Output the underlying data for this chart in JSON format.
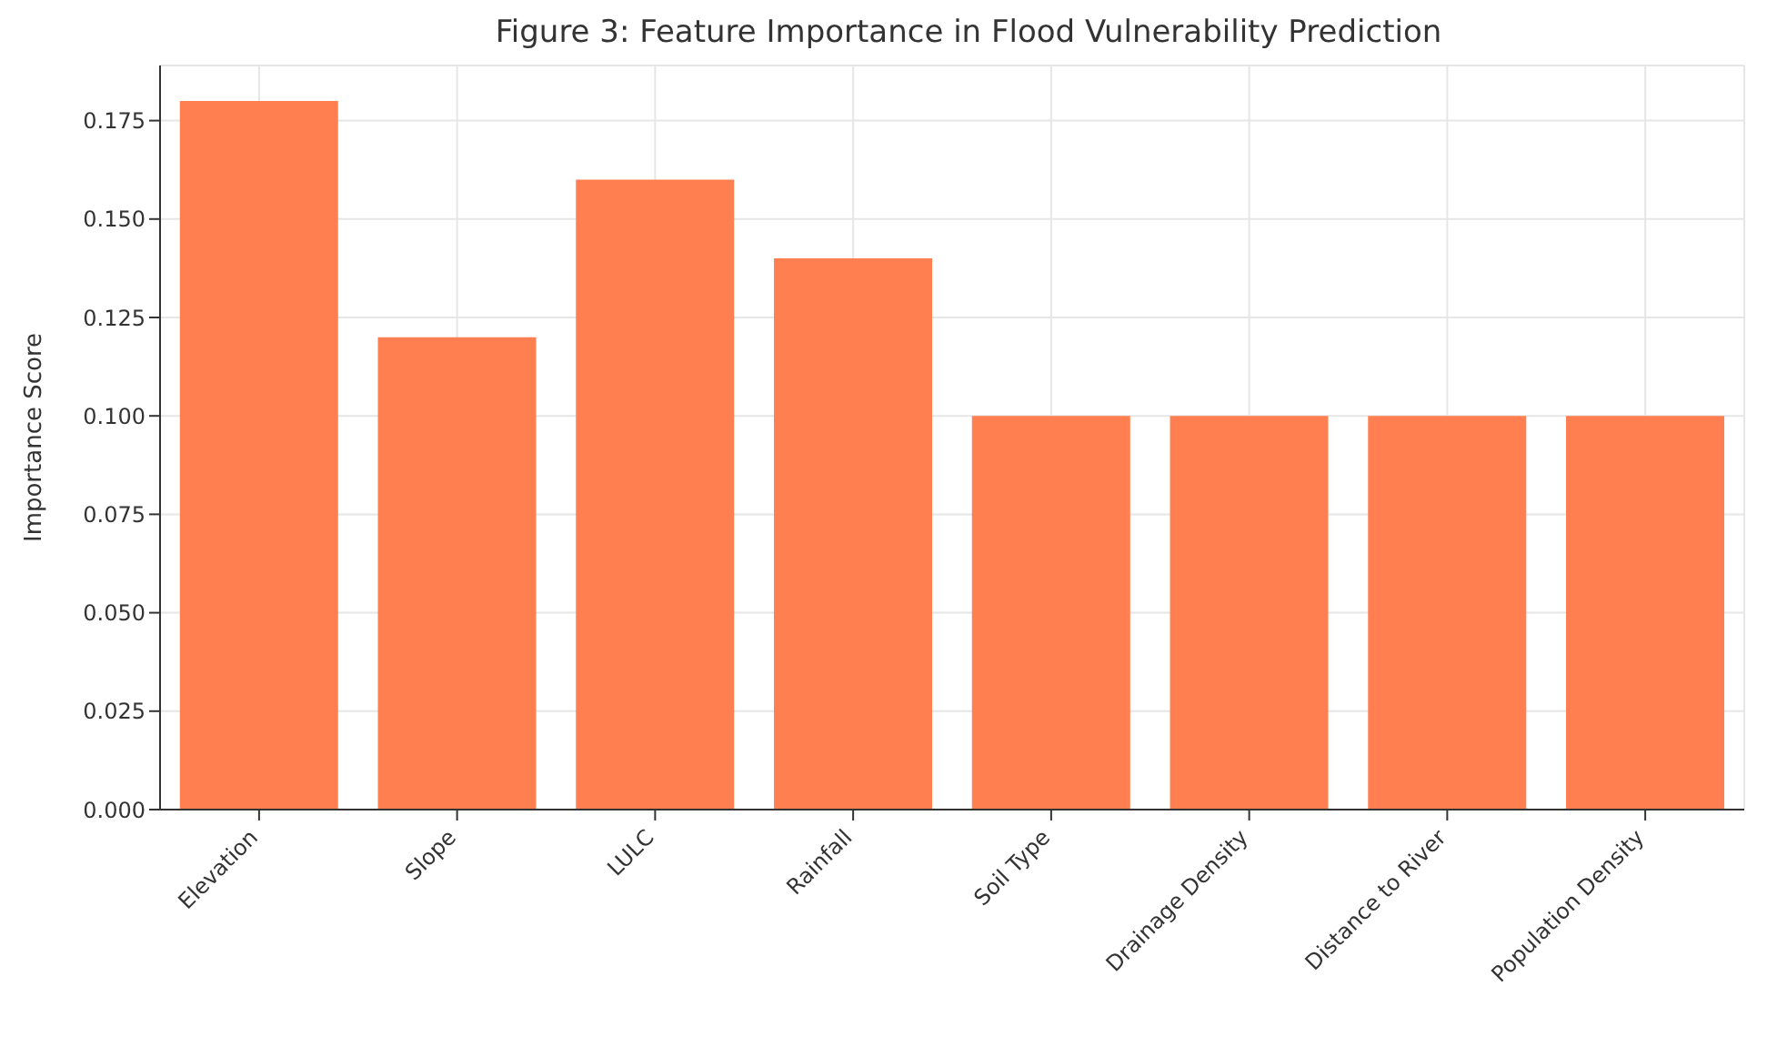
{
  "chart_data": {
    "type": "bar",
    "title": "Figure 3: Feature Importance in Flood Vulnerability Prediction",
    "ylabel": "Importance Score",
    "categories": [
      "Elevation",
      "Slope",
      "LULC",
      "Rainfall",
      "Soil Type",
      "Drainage Density",
      "Distance to River",
      "Population Density"
    ],
    "values": [
      0.18,
      0.12,
      0.16,
      0.14,
      0.1,
      0.1,
      0.1,
      0.1
    ],
    "color": "#ff7f50",
    "ylim": [
      0,
      0.189
    ],
    "yticks": [
      {
        "value": 0,
        "label": "0.000"
      },
      {
        "value": 0.025,
        "label": "0.025"
      },
      {
        "value": 0.05,
        "label": "0.050"
      },
      {
        "value": 0.075,
        "label": "0.075"
      },
      {
        "value": 0.1,
        "label": "0.100"
      },
      {
        "value": 0.125,
        "label": "0.125"
      },
      {
        "value": 0.15,
        "label": "0.150"
      },
      {
        "value": 0.175,
        "label": "0.175"
      }
    ],
    "grid": true
  }
}
